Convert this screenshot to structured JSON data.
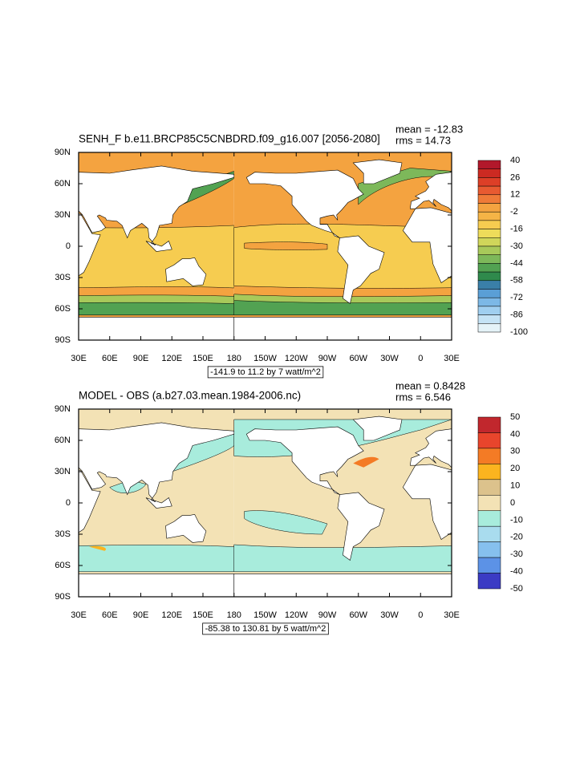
{
  "panels": [
    {
      "title": "SENH_F b.e11.BRCP85C5CNBDRD.f09_g16.007 [2056-2080]",
      "mean": "mean = -12.83",
      "rms": "rms = 14.73",
      "lat_labels": [
        "90N",
        "60N",
        "30N",
        "0",
        "30S",
        "60S",
        "90S"
      ],
      "lon_labels": [
        "30E",
        "60E",
        "90E",
        "120E",
        "150E",
        "180",
        "150W",
        "120W",
        "90W",
        "60W",
        "30W",
        "0",
        "30E"
      ],
      "contour_info": "-141.9 to 11.2 by 7 watt/m^2",
      "colorbar": {
        "labels": [
          40,
          26,
          12,
          -2,
          -16,
          -30,
          -44,
          -58,
          -72,
          -86,
          -100
        ],
        "colors": [
          "#b2182b",
          "#cc2a22",
          "#dd3f27",
          "#e85a31",
          "#ef7a38",
          "#f4a340",
          "#f5b446",
          "#f6cc50",
          "#eedc5a",
          "#d0d65a",
          "#a8c95a",
          "#7db85a",
          "#52a252",
          "#2f8a4c",
          "#3a7fa8",
          "#5a9fd6",
          "#7cb8e6",
          "#a0cff0",
          "#c5e3f5",
          "#e5f3f8"
        ]
      }
    },
    {
      "title": "MODEL - OBS (a.b27.03.mean.1984-2006.nc)",
      "mean": "mean = 0.8428",
      "rms": "rms = 6.546",
      "lat_labels": [
        "90N",
        "60N",
        "30N",
        "0",
        "30S",
        "60S",
        "90S"
      ],
      "lon_labels": [
        "30E",
        "60E",
        "90E",
        "120E",
        "150E",
        "180",
        "150W",
        "120W",
        "90W",
        "60W",
        "30W",
        "0",
        "30E"
      ],
      "contour_info": "-85.38 to 130.81 by 5 watt/m^2",
      "colorbar": {
        "labels": [
          50,
          40,
          30,
          20,
          10,
          0,
          -10,
          -20,
          -30,
          -40,
          -50
        ],
        "colors": [
          "#c1272d",
          "#e8452c",
          "#f47b25",
          "#fbb41f",
          "#dcc28c",
          "#f3e2b5",
          "#a8ecdc",
          "#a9dcee",
          "#86c0ee",
          "#5c92e6",
          "#3b3bc4"
        ]
      }
    }
  ]
}
